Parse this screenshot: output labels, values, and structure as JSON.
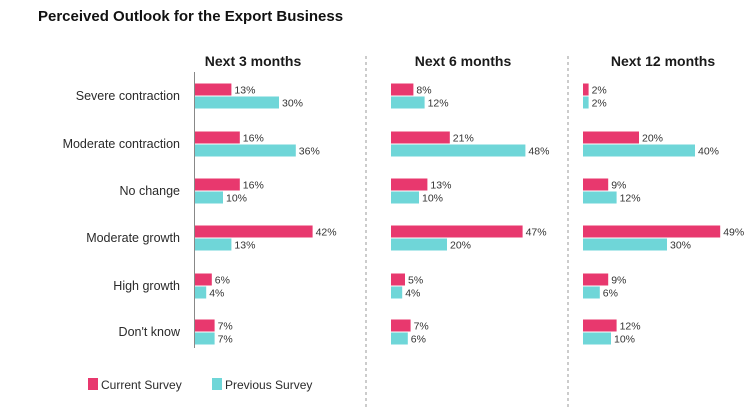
{
  "title": "Perceived Outlook for the Export Business",
  "colors": {
    "current": "#E8386E",
    "previous": "#6FD6D8"
  },
  "chart_data": {
    "type": "bar",
    "orientation": "horizontal",
    "title": "Perceived Outlook for the Export Business",
    "categories": [
      "Severe contraction",
      "Moderate contraction",
      "No change",
      "Moderate growth",
      "High growth",
      "Don't know"
    ],
    "legend": [
      "Current Survey",
      "Previous Survey"
    ],
    "legend_position": "bottom-left",
    "value_suffix": "%",
    "panels": [
      {
        "title": "Next 3 months",
        "series": [
          {
            "name": "Current Survey",
            "values": [
              13,
              16,
              16,
              42,
              6,
              7
            ]
          },
          {
            "name": "Previous Survey",
            "values": [
              30,
              36,
              10,
              13,
              4,
              7
            ]
          }
        ]
      },
      {
        "title": "Next 6 months",
        "series": [
          {
            "name": "Current Survey",
            "values": [
              8,
              21,
              13,
              47,
              5,
              7
            ]
          },
          {
            "name": "Previous Survey",
            "values": [
              12,
              48,
              10,
              20,
              4,
              6
            ]
          }
        ]
      },
      {
        "title": "Next 12 months",
        "series": [
          {
            "name": "Current Survey",
            "values": [
              2,
              20,
              9,
              49,
              9,
              12
            ]
          },
          {
            "name": "Previous Survey",
            "values": [
              2,
              40,
              12,
              30,
              6,
              10
            ]
          }
        ]
      }
    ]
  }
}
